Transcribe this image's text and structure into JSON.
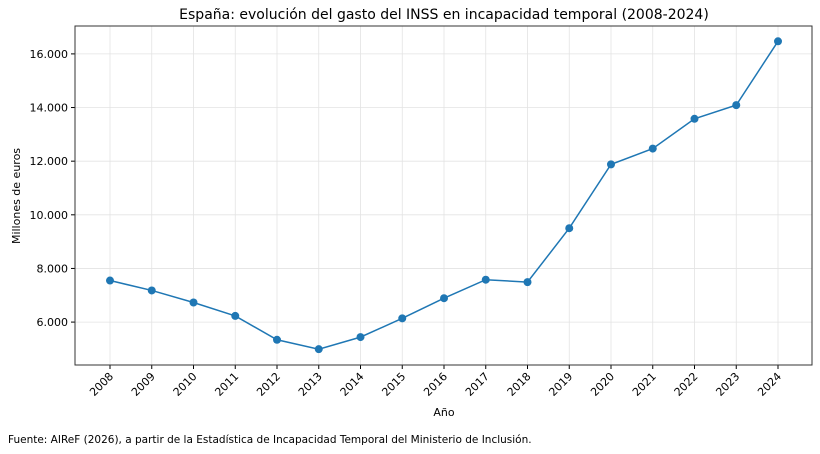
{
  "chart_data": {
    "type": "line",
    "title": "España: evolución del gasto del INSS en incapacidad temporal (2008-2024)",
    "xlabel": "Año",
    "ylabel": "Millones de euros",
    "x": [
      "2008",
      "2009",
      "2010",
      "2011",
      "2012",
      "2013",
      "2014",
      "2015",
      "2016",
      "2017",
      "2018",
      "2019",
      "2020",
      "2021",
      "2022",
      "2023",
      "2024"
    ],
    "series": [
      {
        "values": [
          7550,
          7180,
          6730,
          6230,
          5340,
          4990,
          5440,
          6140,
          6890,
          7580,
          7490,
          9500,
          11880,
          12470,
          13580,
          14090,
          16470
        ],
        "color": "#1f77b4",
        "marker": "circle"
      }
    ],
    "yticks": [
      6000,
      8000,
      10000,
      12000,
      14000,
      16000
    ],
    "ytick_labels": [
      "6.000",
      "8.000",
      "10.000",
      "12.000",
      "14.000",
      "16.000"
    ],
    "ylim": [
      4400,
      17040
    ],
    "grid": true,
    "xtick_rotation": 45
  },
  "footer": {
    "source": "Fuente: AIReF (2026), a partir de la Estadística de Incapacidad Temporal del Ministerio de Inclusión."
  }
}
